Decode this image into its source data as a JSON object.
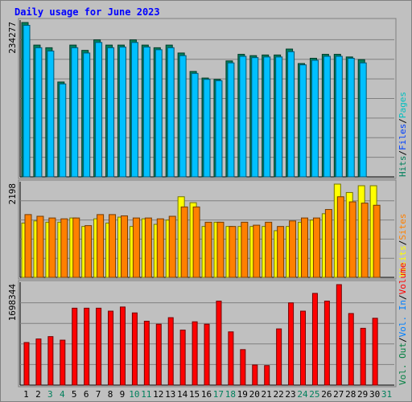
{
  "chart_data": {
    "type": "bar",
    "title": "Daily usage for June 2023",
    "days": [
      "1",
      "2",
      "3",
      "4",
      "5",
      "6",
      "7",
      "8",
      "9",
      "10",
      "11",
      "12",
      "13",
      "14",
      "15",
      "16",
      "17",
      "18",
      "19",
      "20",
      "21",
      "22",
      "23",
      "24",
      "25",
      "26",
      "27",
      "28",
      "29",
      "30",
      "31"
    ],
    "weekend_days": [
      "3",
      "4",
      "10",
      "11",
      "17",
      "18",
      "24",
      "25",
      "31"
    ],
    "panels": [
      {
        "id": "hits-files-pages",
        "max_label": "234277",
        "max_value": 234277,
        "series": [
          {
            "name": "Hits",
            "color": "#00805c",
            "values": [
              234277,
              200000,
              196000,
              144000,
              200000,
              192000,
              208000,
              200000,
              200000,
              208000,
              200000,
              196000,
              200000,
              188000,
              160000,
              150000,
              148000,
              176000,
              186000,
              184000,
              185000,
              185000,
              194000,
              172000,
              180000,
              186000,
              186000,
              182000,
              178000,
              null,
              null
            ]
          },
          {
            "name": "Files",
            "color": "#00c0ff",
            "values": [
              230000,
              196000,
              191000,
              141000,
              196000,
              188000,
              204000,
              196000,
              197000,
              204000,
              197000,
              193000,
              196000,
              184000,
              157000,
              148000,
              146000,
              173000,
              183000,
              181000,
              182000,
              182000,
              190000,
              170000,
              177000,
              183000,
              183000,
              180000,
              173000,
              null,
              null
            ]
          },
          {
            "name": "Pages",
            "color": "#00e0ff",
            "values": []
          }
        ]
      },
      {
        "id": "visits-sites",
        "max_label": "2198",
        "max_value": 2198,
        "series": [
          {
            "name": "Visits",
            "color": "#ffff00",
            "values": [
              1280,
              1330,
              1300,
              1300,
              1400,
              1200,
              1380,
              1280,
              1420,
              1200,
              1380,
              1250,
              1350,
              1900,
              1760,
              1200,
              1300,
              1200,
              1200,
              1200,
              1200,
              1100,
              1200,
              1300,
              1350,
              1500,
              2198,
              2000,
              2160,
              2160,
              null
            ]
          },
          {
            "name": "Sites",
            "color": "#ff8000",
            "values": [
              1480,
              1440,
              1400,
              1380,
              1400,
              1220,
              1480,
              1480,
              1450,
              1400,
              1400,
              1380,
              1440,
              1660,
              1660,
              1300,
              1300,
              1200,
              1300,
              1230,
              1300,
              1200,
              1330,
              1400,
              1400,
              1600,
              1900,
              1780,
              1750,
              1700,
              null
            ]
          }
        ]
      },
      {
        "id": "volume",
        "max_label": "1698344",
        "max_value": 1698344,
        "series": [
          {
            "name": "Vol. Out",
            "color": "#008040",
            "values": []
          },
          {
            "name": "Vol. In",
            "color": "#0080ff",
            "values": []
          },
          {
            "name": "Volume",
            "color": "#ff0000",
            "values": [
              720000,
              780000,
              820000,
              760000,
              1300000,
              1300000,
              1300000,
              1250000,
              1320000,
              1220000,
              1080000,
              1030000,
              1140000,
              930000,
              1070000,
              1030000,
              1420000,
              900000,
              600000,
              340000,
              330000,
              950000,
              1390000,
              1250000,
              1550000,
              1420000,
              1698344,
              1210000,
              960000,
              1130000,
              null
            ]
          }
        ]
      }
    ],
    "side_labels": {
      "panel1": [
        {
          "text": "Hits",
          "color": "#00805c"
        },
        {
          "text": "Files",
          "color": "#0040ff"
        },
        {
          "text": "Pages",
          "color": "#00c0c0"
        }
      ],
      "panel2": [
        {
          "text": "Visits",
          "color": "#ffff00"
        },
        {
          "text": "Sites",
          "color": "#ff8000"
        }
      ],
      "panel3": [
        {
          "text": "Vol. Out",
          "color": "#008040"
        },
        {
          "text": "Vol. In",
          "color": "#0080ff"
        },
        {
          "text": "Volume",
          "color": "#ff0000"
        }
      ]
    },
    "separator": "/",
    "colors": {
      "background": "#c0c0c0",
      "plot_background": "#c0c0c0",
      "grid": "#808080",
      "title": "#0000ff",
      "weekday_tick": "#000000",
      "weekend_tick": "#00805c"
    },
    "grid": true
  }
}
